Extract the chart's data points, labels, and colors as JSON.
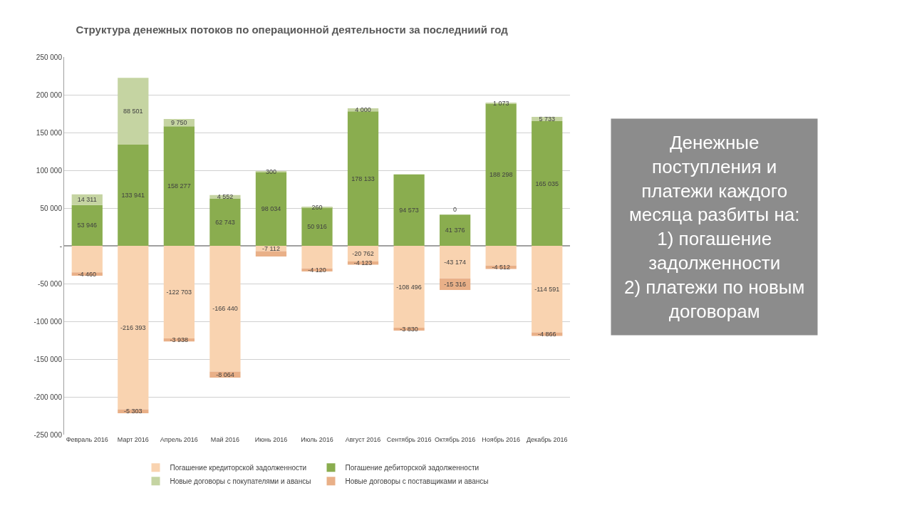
{
  "chart_data": {
    "type": "bar",
    "stacked": true,
    "title": "Структура денежных потоков по операционной деятельности за последниий год",
    "categories": [
      "Февраль 2016",
      "Март 2016",
      "Апрель 2016",
      "Май 2016",
      "Июнь 2016",
      "Июль 2016",
      "Август 2016",
      "Сентябрь 2016",
      "Октябрь 2016",
      "Ноябрь 2016",
      "Декабрь 2016"
    ],
    "series": [
      {
        "name": "Погашение кредиторской задолженности",
        "color": "#f9d3b0",
        "values": [
          -35053,
          -216393,
          -122703,
          -166440,
          -7112,
          -29900,
          -20762,
          -108496,
          -43174,
          -26100,
          -114591
        ],
        "value_labels": [
          null,
          "-216 393",
          "-122 703",
          "-166 440",
          "-7 112",
          null,
          "-20 762",
          "-108 496",
          "-43 174",
          null,
          "-114 591"
        ]
      },
      {
        "name": "Погашение дебиторской задолженности",
        "color": "#8aad4f",
        "values": [
          53946,
          133941,
          158277,
          62743,
          98034,
          50916,
          178133,
          94573,
          41376,
          188298,
          165035
        ],
        "value_labels": [
          "53 946",
          "133 941",
          "158 277",
          "62 743",
          "98 034",
          "50 916",
          "178 133",
          "94 573",
          "41 376",
          "188 298",
          "165 035"
        ]
      },
      {
        "name": "Новые договоры с покупателями и авансы",
        "color": "#c5d4a2",
        "values": [
          14311,
          88501,
          9750,
          4552,
          300,
          260,
          4000,
          null,
          0,
          1073,
          5733
        ],
        "value_labels": [
          "14 311",
          "88 501",
          "9 750",
          "4 552",
          "300",
          "260",
          "4 000",
          null,
          "0",
          "1 073",
          "5 733"
        ]
      },
      {
        "name": "Новые договоры с поставщиками и авансы",
        "color": "#e9b088",
        "values": [
          -4460,
          -5303,
          -3938,
          -8064,
          -7000,
          -4120,
          -4123,
          -3830,
          -15316,
          -4512,
          -4866
        ],
        "value_labels": [
          "-4 460",
          "-5 303",
          "-3 938",
          "-8 064",
          null,
          "-4 120",
          "-4 123",
          "-3 830",
          "-15 316",
          "-4 512",
          "-4 866"
        ]
      }
    ],
    "ylim": [
      -250000,
      250000
    ],
    "yticks": [
      {
        "value": -250000,
        "label": "-250 000"
      },
      {
        "value": -200000,
        "label": "-200 000"
      },
      {
        "value": -150000,
        "label": "-150 000"
      },
      {
        "value": -100000,
        "label": "-100 000"
      },
      {
        "value": -50000,
        "label": "-50 000"
      },
      {
        "value": 0,
        "label": "-"
      },
      {
        "value": 50000,
        "label": "50 000"
      },
      {
        "value": 100000,
        "label": "100 000"
      },
      {
        "value": 150000,
        "label": "150 000"
      },
      {
        "value": 200000,
        "label": "200 000"
      },
      {
        "value": 250000,
        "label": "250 000"
      }
    ],
    "grid": "y",
    "legend": "bottom",
    "annotations": [
      "Денежные\nпоступления и\nплатежи каждого\nмесяца разбиты на:\n1) погашение\nзадолженности\n2) платежи по новым\nдоговорам"
    ]
  }
}
